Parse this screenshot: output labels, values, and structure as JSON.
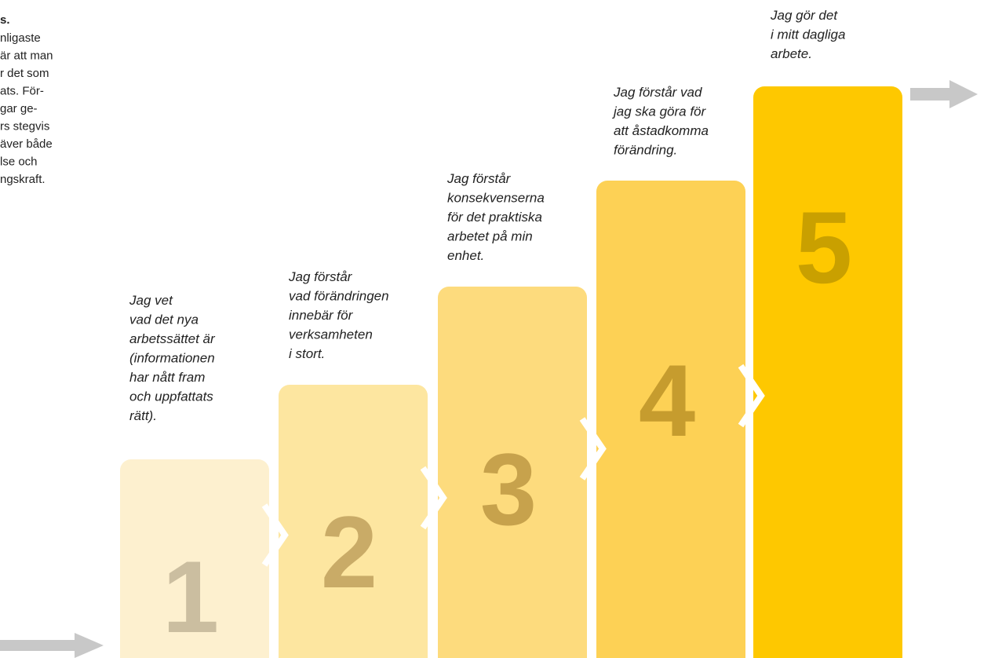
{
  "intro": {
    "heading": "s.",
    "lines": [
      "nligaste",
      "är att man",
      "r det som",
      "ats. För-",
      "gar ge-",
      "rs stegvis",
      "äver både",
      "lse och",
      "ngskraft."
    ]
  },
  "steps": [
    {
      "number": "1",
      "lines": [
        "Jag vet",
        "vad det nya",
        "arbetssättet är",
        "(informationen",
        "har nått fram",
        "och uppfattats",
        "rätt)."
      ]
    },
    {
      "number": "2",
      "lines": [
        "Jag förstår",
        "vad förändringen",
        "innebär för",
        "verksamheten",
        "i stort."
      ]
    },
    {
      "number": "3",
      "lines": [
        "Jag förstår",
        "konsekvenserna",
        "för det praktiska",
        "arbetet på min",
        "enhet."
      ]
    },
    {
      "number": "4",
      "lines": [
        "Jag förstår vad",
        "jag ska göra för",
        "att åstadkomma",
        "förändring."
      ]
    },
    {
      "number": "5",
      "lines": [
        "Jag gör det",
        "i mitt dagliga",
        "arbete."
      ]
    }
  ]
}
